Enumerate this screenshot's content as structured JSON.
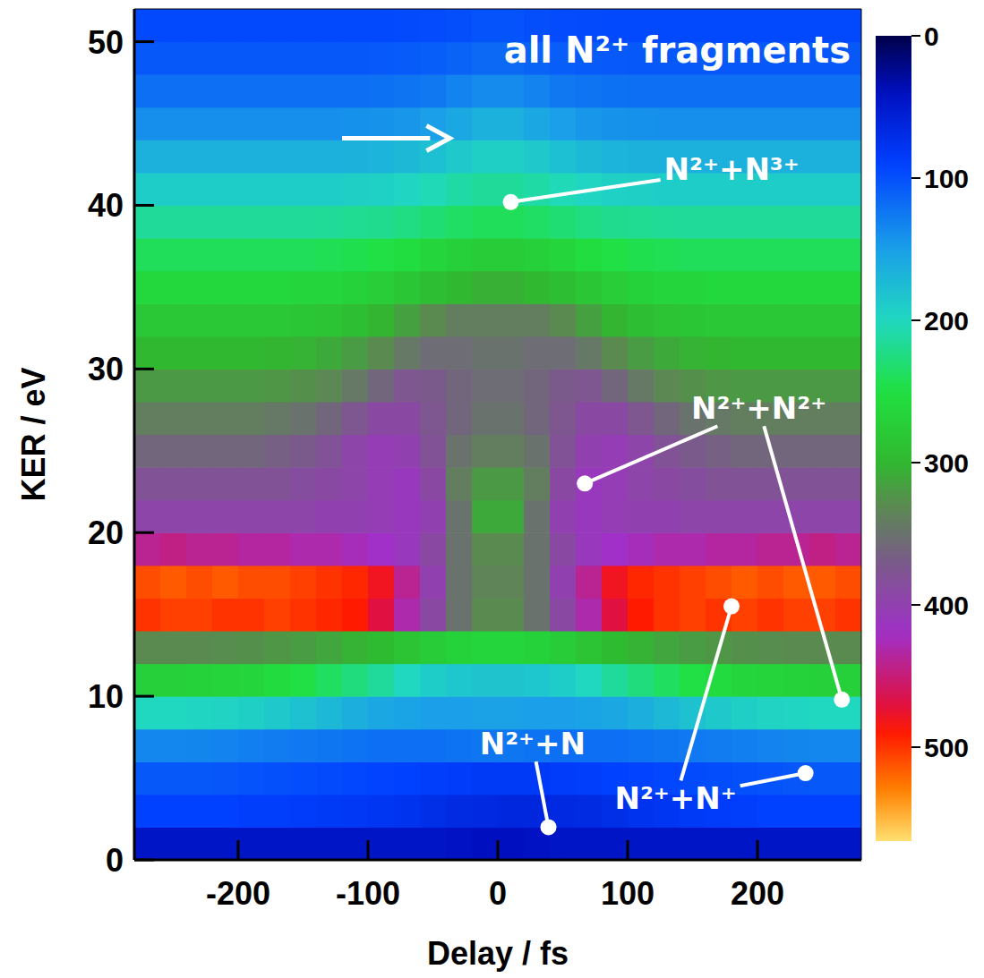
{
  "chart_data": {
    "type": "heatmap",
    "title": "all N²⁺ fragments",
    "x_label": "Delay / fs",
    "y_label": "KER / eV",
    "xlim": [
      -280,
      280
    ],
    "ylim": [
      0,
      52
    ],
    "xticks": [
      -200,
      -100,
      0,
      100,
      200
    ],
    "yticks": [
      0,
      10,
      20,
      30,
      40,
      50
    ],
    "x_bins": [
      -280,
      -260,
      -240,
      -220,
      -200,
      -180,
      -160,
      -140,
      -120,
      -100,
      -80,
      -60,
      -40,
      -20,
      0,
      20,
      40,
      60,
      80,
      100,
      120,
      140,
      160,
      180,
      200,
      220,
      240,
      260,
      280
    ],
    "y_bins": [
      0,
      2,
      4,
      6,
      8,
      10,
      12,
      14,
      16,
      18,
      20,
      22,
      24,
      26,
      28,
      30,
      32,
      34,
      36,
      38,
      40,
      42,
      44,
      46,
      48,
      50,
      52
    ],
    "cells": [
      [
        45,
        45,
        45,
        45,
        45,
        45,
        45,
        45,
        45,
        45,
        45,
        45,
        42,
        40,
        40,
        42,
        45,
        45,
        45,
        45,
        45,
        45,
        45,
        45,
        45,
        45,
        45,
        45
      ],
      [
        90,
        90,
        90,
        90,
        88,
        88,
        86,
        84,
        82,
        80,
        76,
        72,
        68,
        66,
        64,
        64,
        66,
        68,
        72,
        76,
        80,
        84,
        86,
        88,
        90,
        90,
        90,
        90
      ],
      [
        105,
        105,
        105,
        104,
        102,
        100,
        98,
        96,
        94,
        92,
        90,
        88,
        86,
        84,
        84,
        84,
        86,
        88,
        90,
        92,
        94,
        96,
        98,
        100,
        102,
        104,
        105,
        105
      ],
      [
        135,
        135,
        134,
        132,
        130,
        128,
        126,
        124,
        122,
        120,
        120,
        120,
        122,
        124,
        124,
        122,
        120,
        120,
        120,
        122,
        124,
        126,
        128,
        130,
        132,
        134,
        135,
        135
      ],
      [
        200,
        200,
        198,
        196,
        192,
        186,
        180,
        172,
        164,
        158,
        154,
        150,
        150,
        152,
        152,
        150,
        150,
        154,
        158,
        164,
        172,
        180,
        186,
        192,
        196,
        198,
        200,
        200
      ],
      [
        270,
        270,
        268,
        266,
        262,
        256,
        248,
        238,
        226,
        214,
        200,
        190,
        184,
        182,
        182,
        184,
        190,
        200,
        214,
        226,
        238,
        248,
        256,
        262,
        266,
        268,
        270,
        270
      ],
      [
        330,
        330,
        330,
        328,
        326,
        322,
        318,
        312,
        304,
        296,
        286,
        276,
        268,
        264,
        264,
        268,
        276,
        286,
        296,
        304,
        312,
        318,
        322,
        326,
        328,
        330,
        330,
        330
      ],
      [
        500,
        505,
        505,
        500,
        500,
        505,
        500,
        495,
        490,
        470,
        430,
        390,
        350,
        330,
        330,
        350,
        390,
        430,
        470,
        490,
        500,
        505,
        500,
        505,
        500,
        505,
        505,
        500
      ],
      [
        510,
        515,
        510,
        515,
        510,
        510,
        505,
        500,
        495,
        480,
        440,
        400,
        350,
        335,
        335,
        350,
        400,
        440,
        480,
        495,
        500,
        505,
        510,
        515,
        510,
        515,
        515,
        510
      ],
      [
        440,
        445,
        440,
        440,
        435,
        435,
        430,
        430,
        425,
        420,
        410,
        390,
        350,
        330,
        330,
        350,
        390,
        410,
        420,
        425,
        430,
        430,
        435,
        435,
        440,
        440,
        445,
        440
      ],
      [
        395,
        395,
        395,
        395,
        395,
        395,
        395,
        400,
        400,
        405,
        410,
        400,
        350,
        310,
        310,
        350,
        400,
        410,
        405,
        400,
        400,
        395,
        395,
        395,
        395,
        395,
        395,
        395
      ],
      [
        380,
        380,
        380,
        380,
        380,
        380,
        385,
        390,
        395,
        405,
        410,
        390,
        340,
        320,
        320,
        340,
        390,
        410,
        405,
        395,
        390,
        385,
        380,
        380,
        380,
        380,
        380,
        380
      ],
      [
        360,
        360,
        360,
        360,
        360,
        365,
        370,
        380,
        395,
        405,
        400,
        380,
        350,
        340,
        340,
        350,
        380,
        400,
        405,
        395,
        380,
        370,
        365,
        360,
        360,
        360,
        360,
        360
      ],
      [
        340,
        340,
        340,
        340,
        340,
        345,
        350,
        360,
        375,
        390,
        390,
        375,
        360,
        350,
        350,
        360,
        375,
        390,
        390,
        375,
        360,
        350,
        345,
        340,
        340,
        340,
        340,
        340
      ],
      [
        320,
        320,
        320,
        320,
        320,
        322,
        326,
        332,
        345,
        360,
        375,
        370,
        360,
        355,
        355,
        360,
        370,
        375,
        360,
        345,
        332,
        326,
        322,
        320,
        320,
        320,
        320,
        320
      ],
      [
        300,
        300,
        300,
        300,
        300,
        302,
        304,
        310,
        318,
        330,
        345,
        355,
        355,
        350,
        350,
        355,
        355,
        345,
        330,
        318,
        310,
        304,
        302,
        300,
        300,
        300,
        300,
        300
      ],
      [
        280,
        280,
        280,
        280,
        280,
        280,
        282,
        286,
        292,
        302,
        315,
        330,
        340,
        340,
        340,
        340,
        330,
        315,
        302,
        292,
        286,
        282,
        280,
        280,
        280,
        280,
        280,
        280
      ],
      [
        260,
        260,
        260,
        260,
        260,
        260,
        262,
        264,
        268,
        274,
        282,
        292,
        300,
        305,
        305,
        300,
        292,
        282,
        274,
        268,
        264,
        262,
        260,
        260,
        260,
        260,
        260,
        260
      ],
      [
        240,
        240,
        240,
        240,
        240,
        240,
        240,
        242,
        244,
        248,
        254,
        262,
        270,
        275,
        275,
        270,
        262,
        254,
        248,
        244,
        242,
        240,
        240,
        240,
        240,
        240,
        240,
        240
      ],
      [
        215,
        215,
        215,
        215,
        215,
        215,
        215,
        216,
        218,
        220,
        224,
        230,
        236,
        240,
        240,
        236,
        230,
        224,
        220,
        218,
        216,
        215,
        215,
        215,
        215,
        215,
        215,
        215
      ],
      [
        190,
        190,
        190,
        190,
        190,
        190,
        190,
        190,
        192,
        194,
        198,
        204,
        210,
        215,
        215,
        210,
        204,
        198,
        194,
        192,
        190,
        190,
        190,
        190,
        190,
        190,
        190,
        190
      ],
      [
        165,
        165,
        165,
        165,
        165,
        165,
        165,
        165,
        166,
        168,
        172,
        178,
        186,
        192,
        192,
        186,
        178,
        172,
        168,
        166,
        165,
        165,
        165,
        165,
        165,
        165,
        165,
        165
      ],
      [
        140,
        140,
        140,
        140,
        140,
        140,
        140,
        140,
        141,
        142,
        145,
        150,
        158,
        165,
        165,
        158,
        150,
        145,
        142,
        141,
        140,
        140,
        140,
        140,
        140,
        140,
        140,
        140
      ],
      [
        120,
        120,
        120,
        120,
        120,
        120,
        120,
        120,
        120,
        121,
        123,
        126,
        132,
        138,
        138,
        132,
        126,
        123,
        121,
        120,
        120,
        120,
        120,
        120,
        120,
        120,
        120,
        120
      ],
      [
        105,
        105,
        105,
        105,
        105,
        105,
        105,
        105,
        105,
        106,
        107,
        109,
        112,
        116,
        116,
        112,
        109,
        107,
        106,
        105,
        105,
        105,
        105,
        105,
        105,
        105,
        105,
        105
      ],
      [
        95,
        95,
        95,
        95,
        95,
        95,
        95,
        95,
        95,
        95,
        96,
        97,
        99,
        102,
        102,
        99,
        97,
        96,
        95,
        95,
        95,
        95,
        95,
        95,
        95,
        95,
        95,
        95
      ]
    ],
    "colorbar": {
      "range": [
        0,
        566
      ],
      "ticks": [
        0,
        100,
        200,
        300,
        400,
        500
      ]
    },
    "annotations": [
      {
        "text": "N²⁺+N³⁺",
        "at": [
          128,
          42.2
        ],
        "points": [
          [
            10,
            40.2
          ]
        ]
      },
      {
        "text": "N²⁺+N²⁺",
        "at": [
          149,
          27.6
        ],
        "points": [
          [
            67,
            23
          ],
          [
            265,
            9.8
          ]
        ]
      },
      {
        "text": "N²⁺+N⁺",
        "at": [
          90,
          3.75
        ],
        "points": [
          [
            180,
            15.5
          ],
          [
            237,
            5.3
          ]
        ]
      },
      {
        "text": "N²⁺+N",
        "at": [
          -14,
          7.1
        ],
        "points": [
          [
            39,
            2.0
          ]
        ]
      }
    ],
    "arrow": {
      "from": [
        -120,
        44.1
      ],
      "to": [
        -37,
        44.1
      ]
    }
  }
}
